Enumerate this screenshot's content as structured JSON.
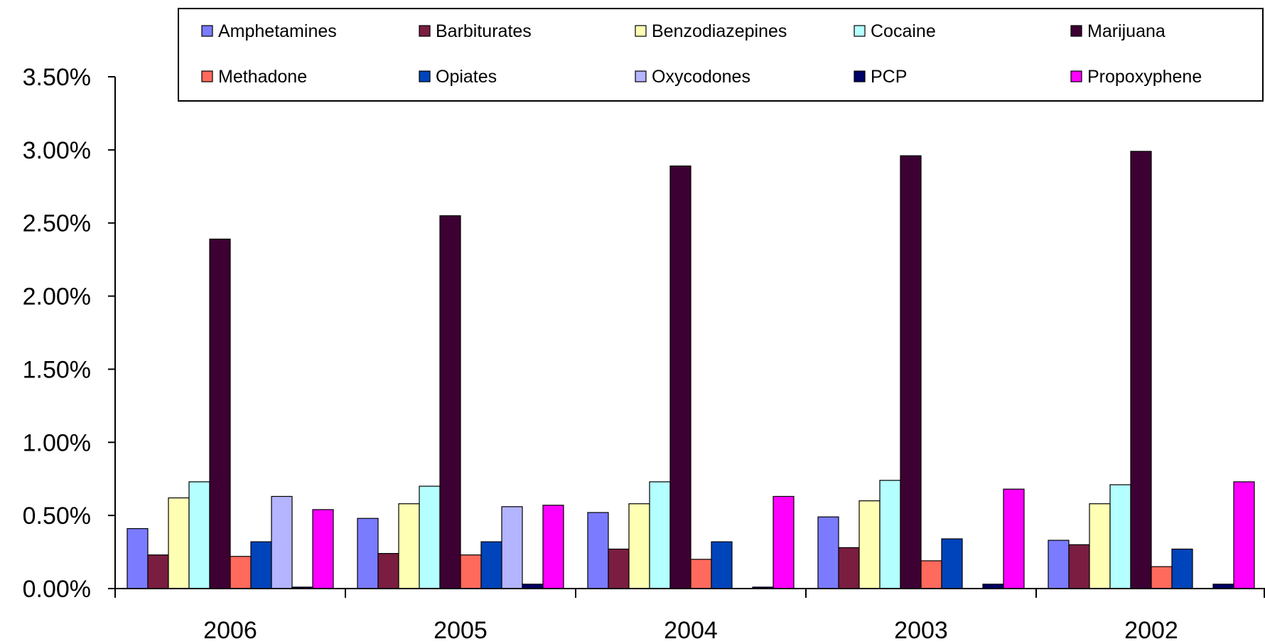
{
  "chart_data": {
    "type": "bar",
    "title": "",
    "xlabel": "",
    "ylabel": "",
    "categories": [
      "2006",
      "2005",
      "2004",
      "2003",
      "2002"
    ],
    "ylim": [
      0,
      0.035
    ],
    "yticks": [
      0,
      0.005,
      0.01,
      0.015,
      0.02,
      0.025,
      0.03,
      0.035
    ],
    "ytick_labels": [
      "0.00%",
      "0.50%",
      "1.00%",
      "1.50%",
      "2.00%",
      "2.50%",
      "3.00%",
      "3.50%"
    ],
    "value_format": "percent",
    "grid": false,
    "legend_position": "top",
    "series": [
      {
        "name": "Amphetamines",
        "color": "#7b7bff",
        "values": [
          0.0041,
          0.0048,
          0.0052,
          0.0049,
          0.0033
        ]
      },
      {
        "name": "Barbiturates",
        "color": "#7a1d40",
        "values": [
          0.0023,
          0.0024,
          0.0027,
          0.0028,
          0.003
        ]
      },
      {
        "name": "Benzodiazepines",
        "color": "#ffffb4",
        "values": [
          0.0062,
          0.0058,
          0.0058,
          0.006,
          0.0058
        ]
      },
      {
        "name": "Cocaine",
        "color": "#b4ffff",
        "values": [
          0.0073,
          0.007,
          0.0073,
          0.0074,
          0.0071
        ]
      },
      {
        "name": "Marijuana",
        "color": "#3d0033",
        "values": [
          0.0239,
          0.0255,
          0.0289,
          0.0296,
          0.0299
        ]
      },
      {
        "name": "Methadone",
        "color": "#ff6a5c",
        "values": [
          0.0022,
          0.0023,
          0.002,
          0.0019,
          0.0015
        ]
      },
      {
        "name": "Opiates",
        "color": "#0044bb",
        "values": [
          0.0032,
          0.0032,
          0.0032,
          0.0034,
          0.0027
        ]
      },
      {
        "name": "Oxycodones",
        "color": "#b4b4ff",
        "values": [
          0.0063,
          0.0056,
          0.0,
          0.0,
          0.0
        ]
      },
      {
        "name": "PCP",
        "color": "#000066",
        "values": [
          0.0001,
          0.0003,
          0.0001,
          0.0003,
          0.0003
        ]
      },
      {
        "name": "Propoxyphene",
        "color": "#ff00ff",
        "values": [
          0.0054,
          0.0057,
          0.0063,
          0.0068,
          0.0073
        ]
      }
    ]
  }
}
